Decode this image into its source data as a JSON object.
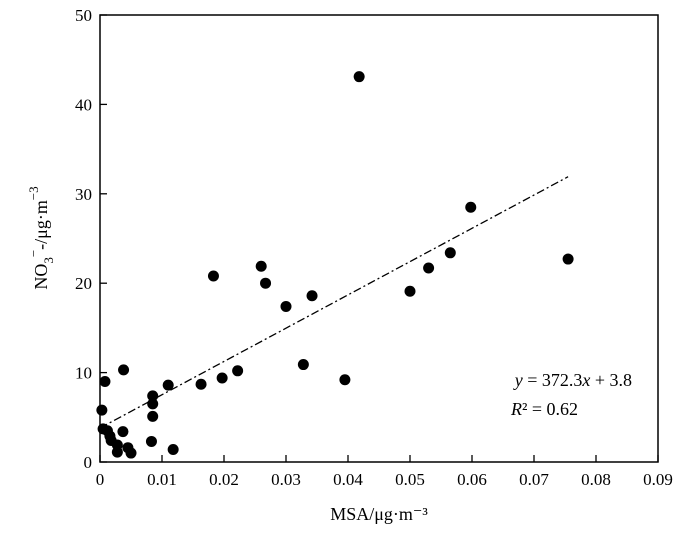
{
  "chart_data": {
    "type": "scatter",
    "title": "",
    "xlabel": "MSA/μg·m⁻³",
    "ylabel": {
      "base": "NO",
      "sub": "3",
      "sup1": "−",
      "mid": "-/μg·m",
      "sup2": "−3"
    },
    "xlim": [
      0,
      0.09
    ],
    "ylim": [
      0,
      50
    ],
    "xticks": [
      "0",
      "0.01",
      "0.02",
      "0.03",
      "0.04",
      "0.05",
      "0.06",
      "0.07",
      "0.08",
      "0.09"
    ],
    "yticks": [
      "0",
      "10",
      "20",
      "30",
      "40",
      "50"
    ],
    "xtick_values": [
      0,
      0.01,
      0.02,
      0.03,
      0.04,
      0.05,
      0.06,
      0.07,
      0.08,
      0.09
    ],
    "ytick_values": [
      0,
      10,
      20,
      30,
      40,
      50
    ],
    "grid": false,
    "legend": "none",
    "points": [
      {
        "x": 0.0003,
        "y": 5.8
      },
      {
        "x": 0.0008,
        "y": 9.0
      },
      {
        "x": 0.0005,
        "y": 3.7
      },
      {
        "x": 0.0012,
        "y": 3.5
      },
      {
        "x": 0.0016,
        "y": 2.9
      },
      {
        "x": 0.0018,
        "y": 2.4
      },
      {
        "x": 0.0028,
        "y": 1.9
      },
      {
        "x": 0.0028,
        "y": 1.1
      },
      {
        "x": 0.0037,
        "y": 3.4
      },
      {
        "x": 0.0038,
        "y": 10.3
      },
      {
        "x": 0.0045,
        "y": 1.6
      },
      {
        "x": 0.005,
        "y": 1.0
      },
      {
        "x": 0.0085,
        "y": 7.4
      },
      {
        "x": 0.0085,
        "y": 6.5
      },
      {
        "x": 0.0085,
        "y": 5.1
      },
      {
        "x": 0.0083,
        "y": 2.3
      },
      {
        "x": 0.011,
        "y": 8.6
      },
      {
        "x": 0.0118,
        "y": 1.4
      },
      {
        "x": 0.0163,
        "y": 8.7
      },
      {
        "x": 0.0183,
        "y": 20.8
      },
      {
        "x": 0.0197,
        "y": 9.4
      },
      {
        "x": 0.0222,
        "y": 10.2
      },
      {
        "x": 0.026,
        "y": 21.9
      },
      {
        "x": 0.0267,
        "y": 20.0
      },
      {
        "x": 0.03,
        "y": 17.4
      },
      {
        "x": 0.0328,
        "y": 10.9
      },
      {
        "x": 0.0342,
        "y": 18.6
      },
      {
        "x": 0.0395,
        "y": 9.2
      },
      {
        "x": 0.0418,
        "y": 43.1
      },
      {
        "x": 0.05,
        "y": 19.1
      },
      {
        "x": 0.053,
        "y": 21.7
      },
      {
        "x": 0.0565,
        "y": 23.4
      },
      {
        "x": 0.0598,
        "y": 28.5
      },
      {
        "x": 0.0755,
        "y": 22.7
      }
    ],
    "trendline": {
      "slope": 372.3,
      "intercept": 3.8,
      "x_start": 0,
      "x_end": 0.0755,
      "style": "dash-dot"
    },
    "annotation": {
      "equation": {
        "y": "y",
        "eq": " = 372.3",
        "x": "x",
        "rest": " + 3.8"
      },
      "r2": {
        "r": "R",
        "sq": "²",
        "rest": " = 0.62"
      }
    }
  }
}
